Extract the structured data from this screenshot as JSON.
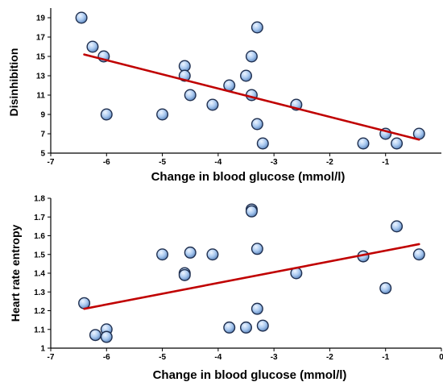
{
  "chart_data": [
    {
      "type": "scatter",
      "xlabel": "Change in blood glucose (mmol/l)",
      "ylabel": "Disinhibition",
      "xlim": [
        -7,
        0
      ],
      "ylim": [
        5,
        20
      ],
      "x_ticks": [
        "-7",
        "-6",
        "-5",
        "-4",
        "-3",
        "-2",
        "-1"
      ],
      "y_ticks": [
        "5",
        "7",
        "9",
        "11",
        "13",
        "15",
        "17",
        "19"
      ],
      "grid": false,
      "marker_color": "#9ec3ef",
      "marker_edge": "#1f2f4f",
      "trend_color": "#c00000",
      "trendline": {
        "x": [
          -6.4,
          -0.4
        ],
        "y": [
          15.2,
          6.4
        ]
      },
      "points": [
        {
          "x": -6.45,
          "y": 19
        },
        {
          "x": -6.25,
          "y": 16
        },
        {
          "x": -6.05,
          "y": 15
        },
        {
          "x": -6.0,
          "y": 9
        },
        {
          "x": -5.0,
          "y": 9
        },
        {
          "x": -4.6,
          "y": 14
        },
        {
          "x": -4.6,
          "y": 13
        },
        {
          "x": -4.5,
          "y": 11
        },
        {
          "x": -4.1,
          "y": 10
        },
        {
          "x": -3.8,
          "y": 12
        },
        {
          "x": -3.5,
          "y": 13
        },
        {
          "x": -3.4,
          "y": 15
        },
        {
          "x": -3.4,
          "y": 11
        },
        {
          "x": -3.3,
          "y": 18
        },
        {
          "x": -3.3,
          "y": 8
        },
        {
          "x": -3.2,
          "y": 6
        },
        {
          "x": -2.6,
          "y": 10
        },
        {
          "x": -1.4,
          "y": 6
        },
        {
          "x": -1.0,
          "y": 7
        },
        {
          "x": -0.8,
          "y": 6
        },
        {
          "x": -0.4,
          "y": 7
        }
      ]
    },
    {
      "type": "scatter",
      "xlabel": "Change in blood glucose (mmol/l)",
      "ylabel": "Heart rate entropy",
      "xlim": [
        -7,
        0
      ],
      "ylim": [
        1,
        1.8
      ],
      "x_ticks": [
        "-7",
        "-6",
        "-5",
        "-4",
        "-3",
        "-2",
        "-1",
        "0"
      ],
      "y_ticks": [
        "1",
        "1.1",
        "1.2",
        "1.3",
        "1.4",
        "1.5",
        "1.6",
        "1.7",
        "1.8"
      ],
      "grid": false,
      "marker_color": "#9ec3ef",
      "marker_edge": "#1f2f4f",
      "trend_color": "#c00000",
      "trendline": {
        "x": [
          -6.4,
          -0.4
        ],
        "y": [
          1.21,
          1.555
        ]
      },
      "points": [
        {
          "x": -6.4,
          "y": 1.24
        },
        {
          "x": -6.2,
          "y": 1.07
        },
        {
          "x": -6.0,
          "y": 1.1
        },
        {
          "x": -6.0,
          "y": 1.06
        },
        {
          "x": -5.0,
          "y": 1.5
        },
        {
          "x": -4.6,
          "y": 1.4
        },
        {
          "x": -4.6,
          "y": 1.39
        },
        {
          "x": -4.5,
          "y": 1.51
        },
        {
          "x": -4.1,
          "y": 1.5
        },
        {
          "x": -3.8,
          "y": 1.11
        },
        {
          "x": -3.5,
          "y": 1.11
        },
        {
          "x": -3.4,
          "y": 1.74
        },
        {
          "x": -3.4,
          "y": 1.73
        },
        {
          "x": -3.3,
          "y": 1.53
        },
        {
          "x": -3.3,
          "y": 1.21
        },
        {
          "x": -3.2,
          "y": 1.12
        },
        {
          "x": -2.6,
          "y": 1.4
        },
        {
          "x": -1.4,
          "y": 1.49
        },
        {
          "x": -1.0,
          "y": 1.32
        },
        {
          "x": -0.8,
          "y": 1.65
        },
        {
          "x": -0.4,
          "y": 1.5
        }
      ]
    }
  ]
}
